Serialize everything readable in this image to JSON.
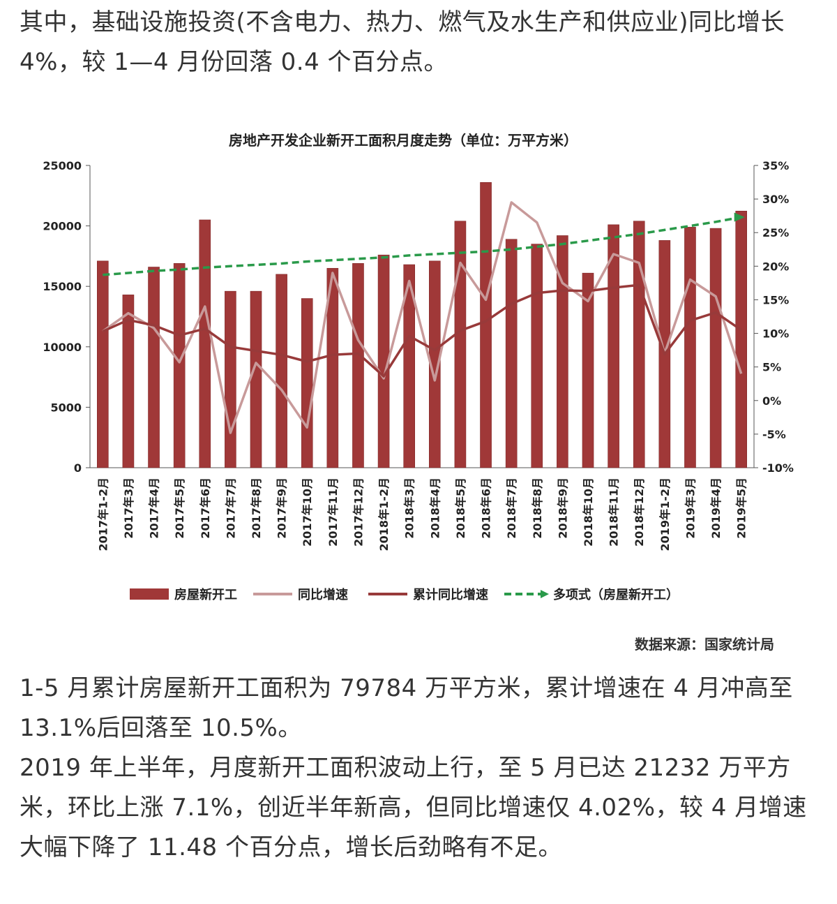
{
  "paragraphs": {
    "top": "其中，基础设施投资(不含电力、热力、燃气及水生产和供应业)同比增长 4%，较 1—4 月份回落 0.4 个百分点。",
    "bottom1": "1-5 月累计房屋新开工面积为 79784 万平方米，累计增速在 4 月冲高至 13.1%后回落至 10.5%。",
    "bottom2": "2019 年上半年，月度新开工面积波动上行，至 5 月已达 21232 万平方米，环比上涨 7.1%，创近半年新高，但同比增速仅 4.02%，较 4 月增速大幅下降了 11.48 个百分点，增长后劲略有不足。"
  },
  "chart_data": {
    "type": "bar",
    "title": "房地产开发企业新开工面积月度走势（单位：万平方米）",
    "source": "数据来源：国家统计局",
    "categories": [
      "2017年1-2月",
      "2017年3月",
      "2017年4月",
      "2017年5月",
      "2017年6月",
      "2017年7月",
      "2017年8月",
      "2017年9月",
      "2017年10月",
      "2017年11月",
      "2017年12月",
      "2018年1-2月",
      "2018年3月",
      "2018年4月",
      "2018年5月",
      "2018年6月",
      "2018年7月",
      "2018年8月",
      "2018年9月",
      "2018年10月",
      "2018年11月",
      "2018年12月",
      "2019年1-2月",
      "2019年3月",
      "2019年4月",
      "2019年5月"
    ],
    "y_left": {
      "ticks": [
        "0",
        "5000",
        "10000",
        "15000",
        "20000",
        "25000"
      ],
      "ylim": [
        0,
        25000
      ]
    },
    "y_right": {
      "ticks": [
        "-10%",
        "-5%",
        "0%",
        "5%",
        "10%",
        "15%",
        "20%",
        "25%",
        "30%",
        "35%"
      ],
      "ylim": [
        -10,
        35
      ]
    },
    "series": [
      {
        "name": "房屋新开工",
        "type": "bar",
        "axis": "left",
        "color": "#a03838",
        "values": [
          17100,
          14300,
          16600,
          16900,
          20500,
          14600,
          14600,
          16000,
          14000,
          16500,
          16900,
          17600,
          16800,
          17100,
          20400,
          23600,
          18900,
          18500,
          19200,
          16100,
          20100,
          20400,
          18800,
          19900,
          19800,
          21232
        ]
      },
      {
        "name": "同比增速",
        "type": "line",
        "axis": "right",
        "color": "#c89a9a",
        "values": [
          10.3,
          13.0,
          10.8,
          5.7,
          14.0,
          -4.8,
          5.6,
          1.6,
          -4.0,
          19.0,
          9.0,
          3.3,
          17.8,
          3.0,
          20.5,
          15.0,
          29.5,
          26.5,
          17.5,
          14.8,
          21.8,
          20.5,
          7.0,
          18.0,
          15.5,
          4.0
        ]
      },
      {
        "name": "累计同比增速",
        "type": "line",
        "axis": "right",
        "color": "#983a3a",
        "values": [
          10.3,
          12.0,
          11.2,
          9.7,
          10.7,
          8.0,
          7.4,
          6.8,
          5.8,
          6.8,
          7.0,
          3.6,
          9.6,
          7.5,
          10.4,
          11.8,
          14.4,
          16.0,
          16.4,
          16.3,
          16.8,
          17.2,
          6.9,
          11.9,
          13.1,
          10.5
        ]
      },
      {
        "name": "多项式（房屋新开工）",
        "type": "line",
        "style": "dashed",
        "axis": "right",
        "color": "#2a9a4a",
        "values": [
          18.7,
          19.0,
          19.3,
          19.5,
          19.8,
          20.0,
          20.2,
          20.4,
          20.7,
          20.9,
          21.1,
          21.3,
          21.6,
          21.8,
          22.0,
          22.2,
          22.5,
          22.9,
          23.3,
          23.8,
          24.3,
          24.8,
          25.4,
          26.0,
          26.6,
          27.3
        ]
      }
    ],
    "legend_position": "bottom",
    "grid": false
  }
}
